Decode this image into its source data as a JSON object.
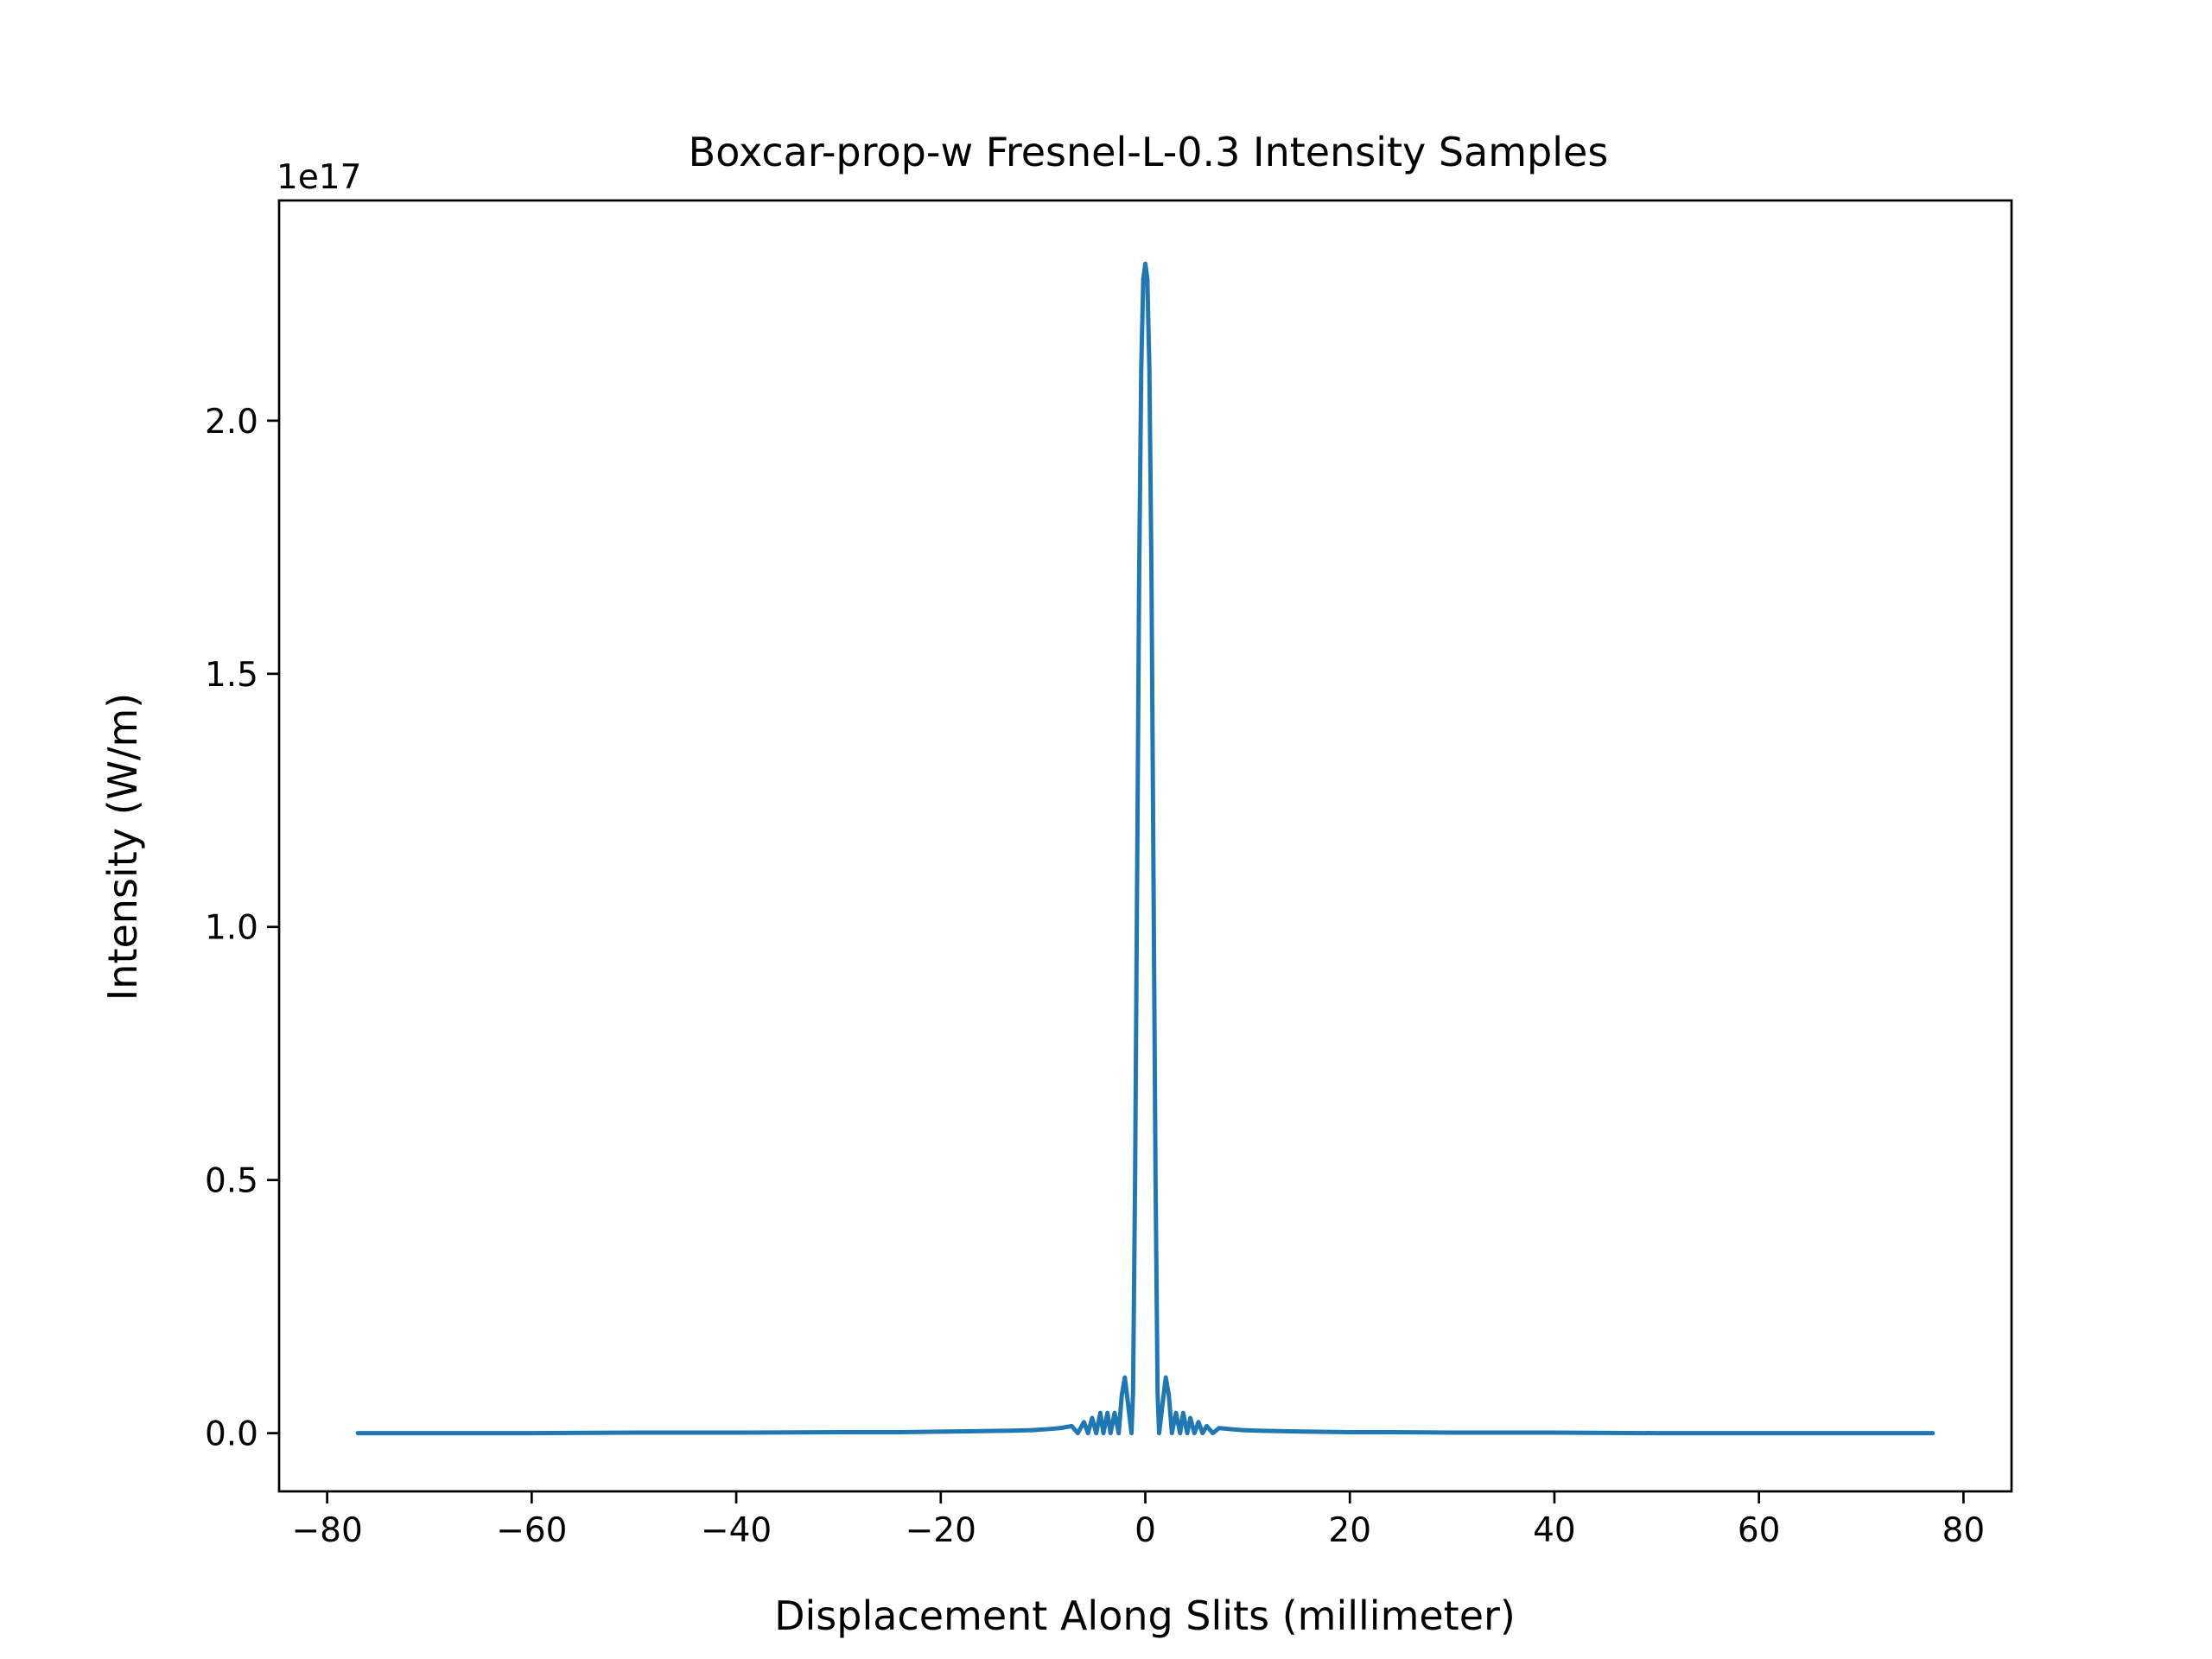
{
  "colors": {
    "series": "#1f77b4",
    "axes": "#000000",
    "background": "#ffffff"
  },
  "chart_data": {
    "type": "line",
    "title": "Boxcar-prop-w Fresnel-L-0.3 Intensity Samples",
    "xlabel": "Displacement Along Slits (millimeter)",
    "ylabel": "Intensity (W/m)",
    "y_offset_text": "1e17",
    "xlim": [
      -84.7,
      84.7
    ],
    "ylim": [
      -0.115,
      2.435
    ],
    "x_ticks": [
      -80,
      -60,
      -40,
      -20,
      0,
      20,
      40,
      60,
      80
    ],
    "x_tick_labels": [
      "−80",
      "−60",
      "−40",
      "−20",
      "0",
      "20",
      "40",
      "60",
      "80"
    ],
    "y_ticks": [
      0.0,
      0.5,
      1.0,
      1.5,
      2.0
    ],
    "y_tick_labels": [
      "0.0",
      "0.5",
      "1.0",
      "1.5",
      "2.0"
    ],
    "grid": false,
    "legend": "none",
    "series": [
      {
        "x": [
          -77.0,
          -70.0,
          -60.0,
          -50.0,
          -40.0,
          -30.0,
          -24.0,
          -20.0,
          -16.0,
          -13.0,
          -11.0,
          -9.5,
          -8.3,
          -7.2,
          -6.6,
          -6.0,
          -5.6,
          -5.2,
          -4.8,
          -4.4,
          -4.1,
          -3.7,
          -3.4,
          -3.0,
          -2.6,
          -2.3,
          -2.0,
          -1.7,
          -1.35,
          -1.2,
          -1.0,
          -0.8,
          -0.6,
          -0.4,
          -0.2,
          0.0,
          0.2,
          0.4,
          0.6,
          0.8,
          1.0,
          1.2,
          1.35,
          1.7,
          2.0,
          2.3,
          2.6,
          3.0,
          3.4,
          3.7,
          4.1,
          4.4,
          4.8,
          5.2,
          5.6,
          6.0,
          6.6,
          7.2,
          8.3,
          9.5,
          11.0,
          13.0,
          16.0,
          20.0,
          24.0,
          30.0,
          40.0,
          50.0,
          60.0,
          70.0,
          77.0
        ],
        "y": [
          0.0,
          0.0,
          0.0,
          0.001,
          0.001,
          0.002,
          0.002,
          0.003,
          0.004,
          0.005,
          0.006,
          0.008,
          0.01,
          0.014,
          0.0,
          0.022,
          0.0,
          0.03,
          0.0,
          0.04,
          0.0,
          0.04,
          0.0,
          0.04,
          0.0,
          0.075,
          0.11,
          0.06,
          0.0,
          0.08,
          0.5,
          1.1,
          1.7,
          2.1,
          2.28,
          2.31,
          2.28,
          2.1,
          1.7,
          1.1,
          0.5,
          0.08,
          0.0,
          0.06,
          0.11,
          0.075,
          0.0,
          0.04,
          0.0,
          0.04,
          0.0,
          0.03,
          0.0,
          0.022,
          0.0,
          0.014,
          0.0,
          0.01,
          0.008,
          0.006,
          0.005,
          0.004,
          0.003,
          0.002,
          0.002,
          0.001,
          0.001,
          0.0,
          0.0,
          0.0,
          0.0
        ]
      }
    ]
  }
}
